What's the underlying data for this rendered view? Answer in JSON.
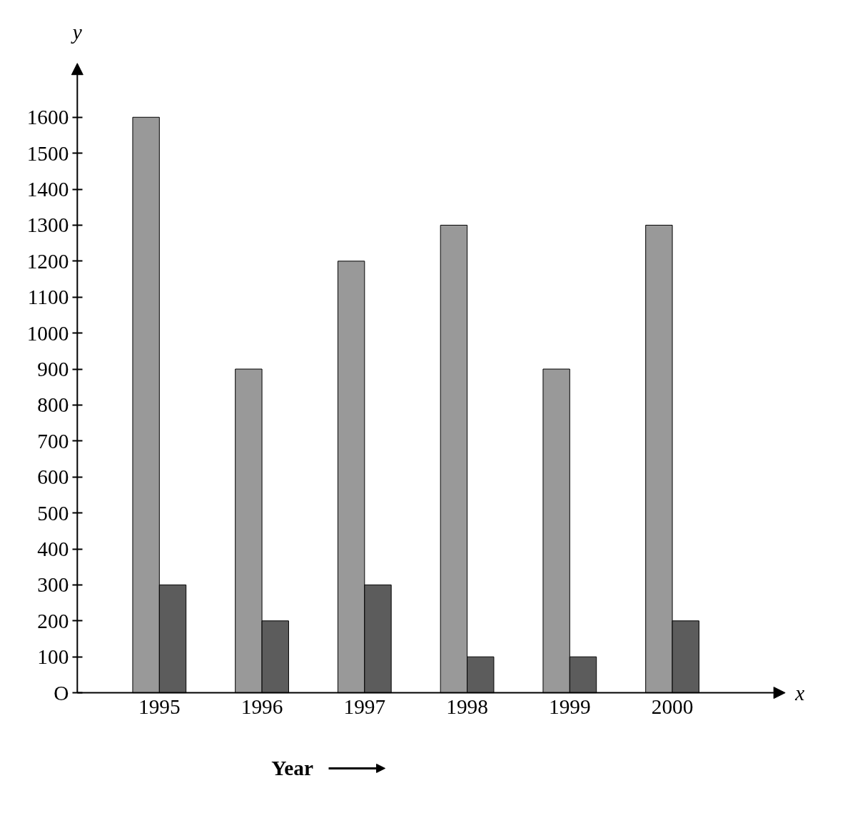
{
  "chart_data": {
    "type": "bar",
    "xlabel": "Year",
    "ylabel": "y",
    "annotations": [
      "x"
    ],
    "categories": [
      "1995",
      "1996",
      "1997",
      "1998",
      "1999",
      "2000"
    ],
    "series": [
      {
        "color": "#999999",
        "values": [
          1600,
          900,
          1200,
          1300,
          900,
          1300
        ]
      },
      {
        "color": "#5c5c5c",
        "values": [
          300,
          200,
          300,
          100,
          100,
          200
        ]
      }
    ],
    "ylim": [
      0,
      1750
    ],
    "yticks": [
      {
        "value": 0,
        "label": "O"
      },
      100,
      200,
      300,
      400,
      500,
      600,
      700,
      800,
      900,
      1000,
      1100,
      1200,
      1300,
      1400,
      1500,
      1600
    ],
    "grid": false
  }
}
